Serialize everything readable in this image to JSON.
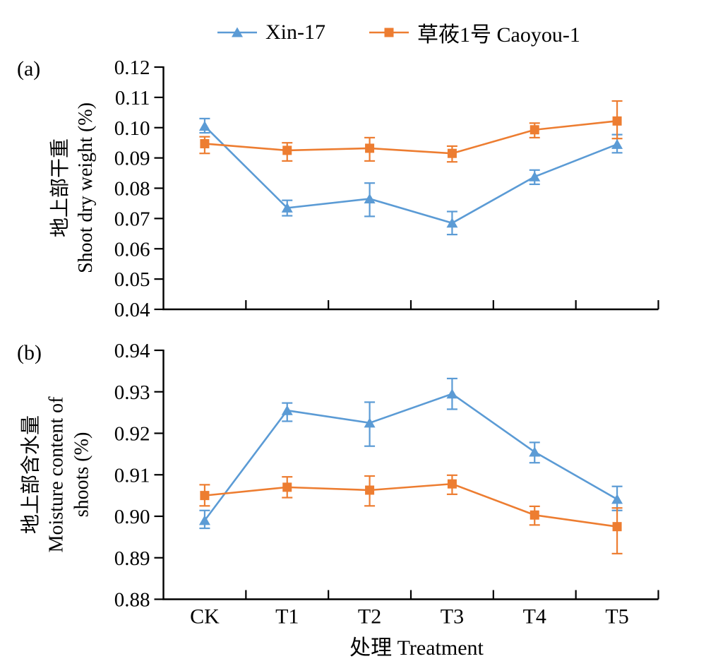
{
  "figure": {
    "background": "#ffffff",
    "text_color": "#000000",
    "legend": {
      "position": "top-center",
      "items": [
        {
          "label": "Xin-17",
          "color": "#5B9BD5",
          "marker": "triangle"
        },
        {
          "label": "草莜1号 Caoyou-1",
          "color": "#ED7D31",
          "marker": "square"
        }
      ]
    },
    "x_axis_title": "处理 Treatment"
  },
  "chart_data": [
    {
      "type": "line",
      "panel_label": "(a)",
      "ylabel_zh": "地上部干重",
      "ylabel_en_lines": [
        "Shoot dry weight (%)"
      ],
      "xlabel": "处理 Treatment",
      "categories": [
        "CK",
        "T1",
        "T2",
        "T3",
        "T4",
        "T5"
      ],
      "ylim": [
        0.04,
        0.12
      ],
      "y_ticks": [
        "0.12",
        "0.11",
        "0.10",
        "0.09",
        "0.08",
        "0.07",
        "0.06",
        "0.05",
        "0.04"
      ],
      "grid": false,
      "show_x_tick_labels": false,
      "error_bars": true,
      "series": [
        {
          "name": "Xin-17",
          "color": "#5B9BD5",
          "marker": "triangle",
          "values": [
            0.1005,
            0.0735,
            0.0765,
            0.0685,
            0.0838,
            0.0945
          ],
          "err_up": [
            0.0025,
            0.0025,
            0.0052,
            0.0038,
            0.0022,
            0.0032
          ],
          "err_down": [
            0.0022,
            0.0026,
            0.0058,
            0.0038,
            0.0025,
            0.0028
          ]
        },
        {
          "name": "草莜1号 Caoyou-1",
          "color": "#ED7D31",
          "marker": "square",
          "values": [
            0.0947,
            0.0925,
            0.0932,
            0.0915,
            0.0993,
            0.1022
          ],
          "err_up": [
            0.0023,
            0.0025,
            0.0035,
            0.0024,
            0.0022,
            0.0066
          ],
          "err_down": [
            0.0032,
            0.0035,
            0.0042,
            0.0028,
            0.0026,
            0.0058
          ]
        }
      ]
    },
    {
      "type": "line",
      "panel_label": "(b)",
      "ylabel_zh": "地上部含水量",
      "ylabel_en_lines": [
        "Moisture content of",
        "shoots (%)"
      ],
      "xlabel": "处理 Treatment",
      "categories": [
        "CK",
        "T1",
        "T2",
        "T3",
        "T4",
        "T5"
      ],
      "ylim": [
        0.88,
        0.94
      ],
      "y_ticks": [
        "0.94",
        "0.93",
        "0.92",
        "0.91",
        "0.90",
        "0.89",
        "0.88"
      ],
      "grid": false,
      "show_x_tick_labels": true,
      "error_bars": true,
      "series": [
        {
          "name": "Xin-17",
          "color": "#5B9BD5",
          "marker": "triangle",
          "values": [
            0.899,
            0.9255,
            0.9225,
            0.9295,
            0.9155,
            0.9041
          ],
          "err_up": [
            0.0024,
            0.0018,
            0.005,
            0.0037,
            0.0023,
            0.0031
          ],
          "err_down": [
            0.0019,
            0.0026,
            0.0056,
            0.0037,
            0.0026,
            0.0027
          ]
        },
        {
          "name": "草莜1号 Caoyou-1",
          "color": "#ED7D31",
          "marker": "square",
          "values": [
            0.905,
            0.907,
            0.9063,
            0.9078,
            0.9003,
            0.8975
          ],
          "err_up": [
            0.0026,
            0.0025,
            0.0034,
            0.0021,
            0.0021,
            0.0045
          ],
          "err_down": [
            0.0025,
            0.0025,
            0.0038,
            0.0025,
            0.0024,
            0.0065
          ]
        }
      ]
    }
  ]
}
